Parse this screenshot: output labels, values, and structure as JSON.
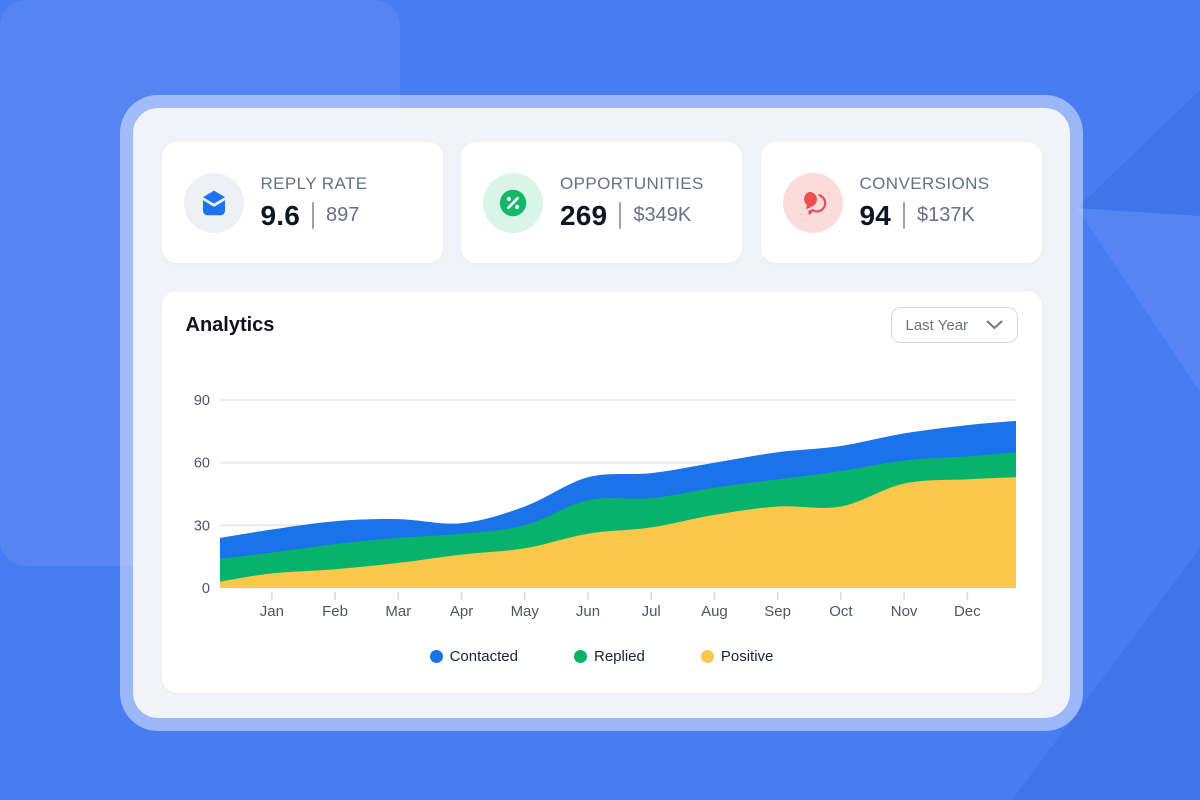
{
  "colors": {
    "background_blue": "#477cf3",
    "frame_border": "rgba(255,255,255,0.45)",
    "panel_bg": "#f1f3f8",
    "card_bg": "#ffffff",
    "accent_blue": "#1a73e8",
    "accent_green": "#12b76a",
    "accent_red": "#ee4e50",
    "accent_yellow": "#fcc84a"
  },
  "stats": [
    {
      "label": "REPLY RATE",
      "value": "9.6",
      "secondary": "897",
      "icon": "envelope-icon",
      "icon_color": "#1d74f0",
      "icon_bg": "#edf0f5"
    },
    {
      "label": "OPPORTUNITIES",
      "value": "269",
      "secondary": "$349K",
      "icon": "percent-icon",
      "icon_color": "#12b76a",
      "icon_bg": "#d9f5e8"
    },
    {
      "label": "CONVERSIONS",
      "value": "94",
      "secondary": "$137K",
      "icon": "chat-bubbles-icon",
      "icon_color": "#ee4e50",
      "icon_bg": "#fcdcda"
    }
  ],
  "analytics": {
    "title": "Analytics",
    "range_selector": {
      "value": "Last Year",
      "icon": "chevron-down-icon"
    }
  },
  "chart_data": {
    "type": "area",
    "mode": "layered-overlap",
    "title": "Analytics",
    "x_labels": [
      "Jan",
      "Feb",
      "Mar",
      "Apr",
      "May",
      "Jun",
      "Jul",
      "Aug",
      "Sep",
      "Oct",
      "Nov",
      "Dec"
    ],
    "x": [
      0,
      0.82,
      1.82,
      2.82,
      3.82,
      4.82,
      5.82,
      6.82,
      7.82,
      8.82,
      9.82,
      10.82,
      11.82,
      12.59
    ],
    "x_note": "first and last samples are the plot edges; indices 1-12 align with x_labels",
    "ylim": [
      0,
      90
    ],
    "y_ticks": [
      0,
      30,
      60,
      90
    ],
    "grid": true,
    "legend_position": "bottom",
    "series": [
      {
        "name": "Contacted",
        "color": "#1a73e8",
        "values": [
          24,
          28,
          32,
          33,
          31,
          39,
          53,
          55,
          60,
          65,
          68,
          74,
          78,
          80
        ]
      },
      {
        "name": "Replied",
        "color": "#09b26a",
        "values": [
          14,
          17,
          21,
          24,
          26,
          30,
          42,
          43,
          48,
          52,
          56,
          61,
          63,
          65
        ]
      },
      {
        "name": "Positive",
        "color": "#fcc84a",
        "values": [
          3,
          7,
          9,
          12,
          16,
          19,
          26,
          29,
          35,
          39,
          39,
          50,
          52,
          53
        ]
      }
    ]
  }
}
